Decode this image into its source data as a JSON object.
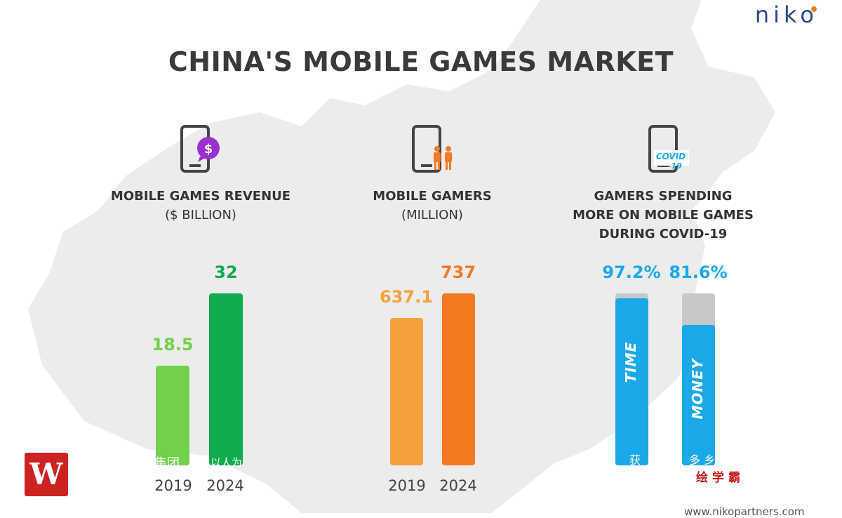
{
  "header": {
    "title": "CHINA'S MOBILE GAMES MARKET",
    "brand": "NIKO"
  },
  "panels": {
    "revenue": {
      "label": "MOBILE GAMES REVENUE",
      "unit": "($ BILLION)"
    },
    "gamers": {
      "label": "MOBILE GAMERS",
      "unit": "(MILLION)"
    },
    "covid": {
      "label_lines": [
        "GAMERS SPENDING",
        "MORE ON MOBILE GAMES",
        "DURING COVID-19"
      ],
      "icon_text": "COVID\n-19"
    }
  },
  "chart_data": [
    {
      "type": "bar",
      "title": "MOBILE GAMES REVENUE ($ BILLION)",
      "categories": [
        "2019",
        "2024"
      ],
      "values": [
        18.5,
        32
      ],
      "value_labels": [
        "18.5",
        "32"
      ],
      "colors": [
        "#72d14a",
        "#10ab4c"
      ]
    },
    {
      "type": "bar",
      "title": "MOBILE GAMERS (MILLION)",
      "categories": [
        "2019",
        "2024"
      ],
      "values": [
        637.1,
        737
      ],
      "value_labels": [
        "637.1",
        "737"
      ],
      "colors": [
        "#f4a03c",
        "#f47920"
      ]
    },
    {
      "type": "bar",
      "title": "GAMERS SPENDING MORE ON MOBILE GAMES DURING COVID-19",
      "categories": [
        "TIME",
        "MONEY"
      ],
      "values": [
        97.2,
        81.6
      ],
      "value_labels": [
        "97.2%",
        "81.6%"
      ],
      "ylim": [
        0,
        100
      ],
      "colors": [
        "#1aa9e8",
        "#1aa9e8"
      ],
      "track_color": "#c8c8c8"
    }
  ],
  "overlays": {
    "left_chars": "集团",
    "left_chars2": "以人为",
    "right_chars1": "获",
    "right_chars2": "多 乡",
    "red_chars": "绘学霸",
    "footer": "www.nikopartners.com"
  },
  "colors": {
    "title": "#3a3a3a",
    "green": "#10ab4c",
    "orange": "#f47920",
    "blue": "#1aa9e8",
    "purple": "#9b2fd0"
  }
}
